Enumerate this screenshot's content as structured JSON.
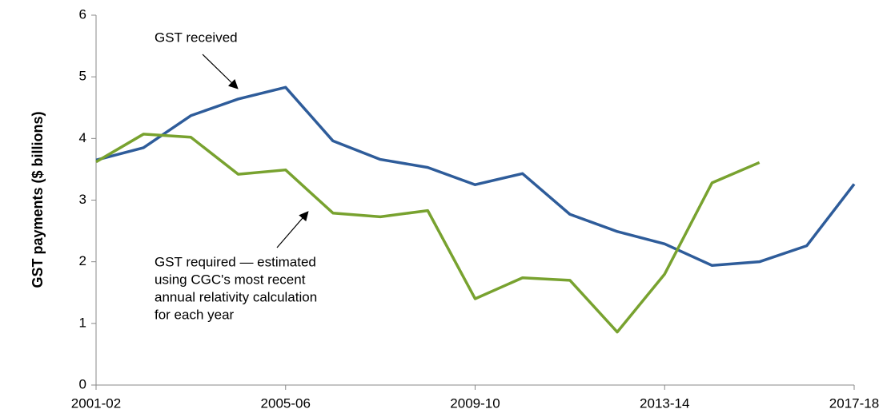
{
  "chart_data": {
    "type": "line",
    "y_label": "GST payments ($ billions)",
    "categories": [
      "2001-02",
      null,
      null,
      null,
      "2005-06",
      null,
      null,
      null,
      "2009-10",
      null,
      null,
      null,
      "2013-14",
      null,
      null,
      null,
      "2017-18"
    ],
    "series": [
      {
        "name": "GST received",
        "color": "#2e5c9a",
        "values": [
          3.65,
          3.85,
          4.37,
          4.64,
          4.83,
          3.96,
          3.66,
          3.53,
          3.25,
          3.43,
          2.77,
          2.49,
          2.29,
          1.94,
          2.0,
          2.26,
          3.26
        ]
      },
      {
        "name": "GST required — estimated using CGC's most recent annual relativity calculation for each year",
        "color": "#78a22f",
        "values": [
          3.62,
          4.07,
          4.02,
          3.42,
          3.49,
          2.79,
          2.73,
          2.83,
          1.4,
          1.74,
          1.7,
          0.86,
          1.8,
          3.28,
          3.61,
          null,
          null
        ]
      }
    ],
    "annotations": [
      {
        "lines": [
          "GST received"
        ]
      },
      {
        "lines": [
          "GST required — estimated",
          "using CGC's most recent",
          "annual relativity calculation",
          "for each year"
        ]
      }
    ],
    "ylim": [
      0,
      6
    ],
    "yticks": [
      0,
      1,
      2,
      3,
      4,
      5,
      6
    ],
    "grid": false
  }
}
